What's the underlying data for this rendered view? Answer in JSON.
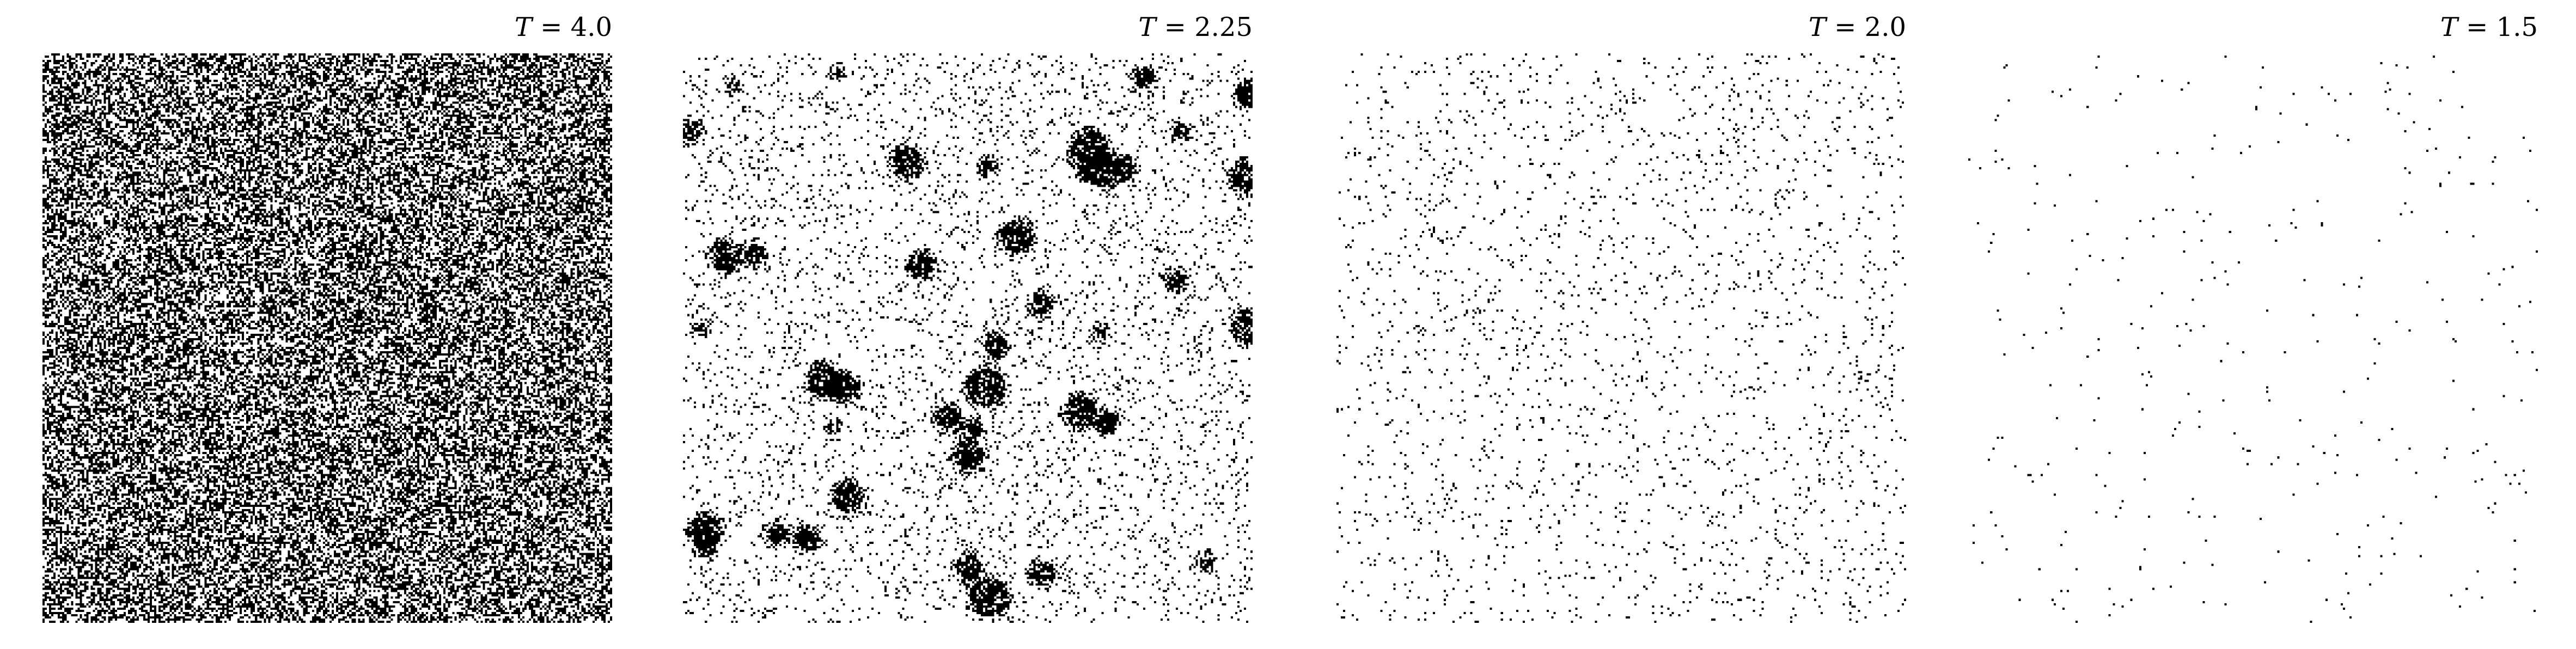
{
  "chart_data": [
    {
      "type": "heatmap",
      "title": "T = 4.0",
      "title_variable": "T",
      "title_value": "4.0",
      "temperature": 4.0,
      "colors": {
        "spin_down": "#000000",
        "spin_up": "#ffffff"
      },
      "black_fraction": 0.5,
      "cluster_count": 0,
      "grid": false
    },
    {
      "type": "heatmap",
      "title": "T = 2.25",
      "title_variable": "T",
      "title_value": "2.25",
      "temperature": 2.25,
      "colors": {
        "spin_down": "#000000",
        "spin_up": "#ffffff"
      },
      "black_fraction": 0.07,
      "cluster_count": 40,
      "grid": false
    },
    {
      "type": "heatmap",
      "title": "T = 2.0",
      "title_variable": "T",
      "title_value": "2.0",
      "temperature": 2.0,
      "colors": {
        "spin_down": "#000000",
        "spin_up": "#ffffff"
      },
      "black_fraction": 0.035,
      "cluster_count": 0,
      "grid": false
    },
    {
      "type": "heatmap",
      "title": "T = 1.5",
      "title_variable": "T",
      "title_value": "1.5",
      "temperature": 1.5,
      "colors": {
        "spin_down": "#000000",
        "spin_up": "#ffffff"
      },
      "black_fraction": 0.005,
      "cluster_count": 0,
      "grid": false
    }
  ]
}
